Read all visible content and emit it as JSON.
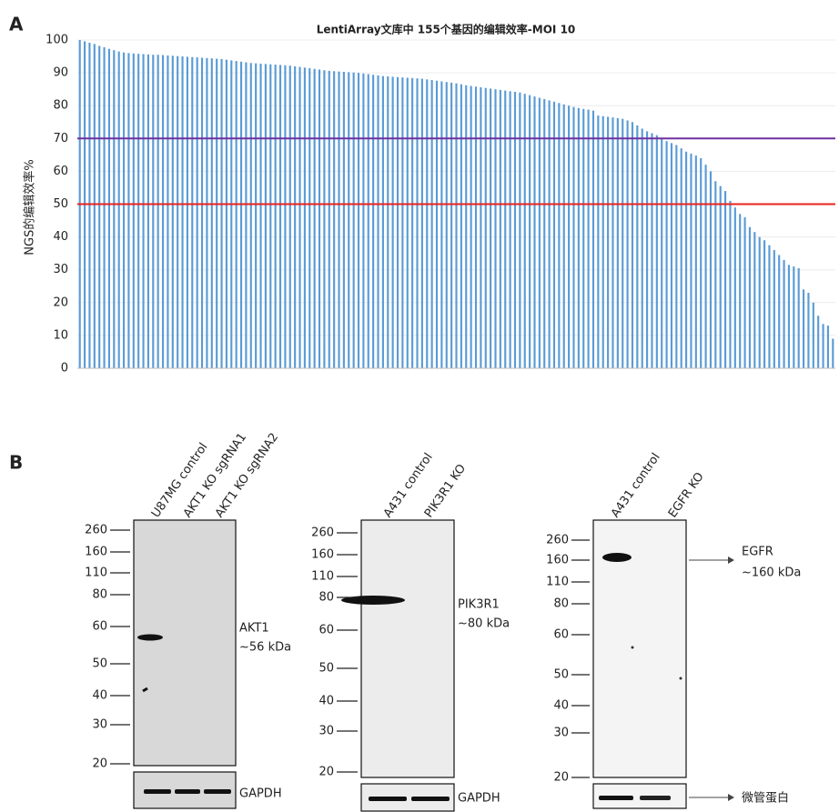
{
  "panel_labels": [
    "A",
    "B"
  ],
  "chart_data": {
    "type": "bar",
    "title": "LentiArray文库中 155个基因的编辑效率-MOI 10",
    "y_label": "NGS的编辑效率%",
    "color": "#5b9bd5",
    "grid": true,
    "ylim": [
      0,
      100
    ],
    "yticks": [
      0,
      10,
      20,
      30,
      40,
      50,
      60,
      70,
      80,
      90,
      100
    ],
    "reference_lines": [
      {
        "value": 70,
        "color": "#7030a0"
      },
      {
        "value": 50,
        "color": "#e8231f"
      }
    ],
    "categories": [
      null,
      null,
      null,
      null,
      null,
      null,
      null,
      null,
      null,
      null,
      null,
      null,
      null,
      null,
      null,
      null,
      null,
      null,
      null,
      null,
      null,
      null,
      null,
      null,
      null,
      null,
      null,
      null,
      null,
      null,
      null,
      null,
      null,
      null,
      null,
      null,
      null,
      null,
      null,
      null,
      null,
      null,
      null,
      null,
      null,
      null,
      null,
      null,
      null,
      null,
      null,
      null,
      null,
      null,
      null,
      null,
      null,
      null,
      null,
      null,
      null,
      null,
      null,
      null,
      null,
      null,
      null,
      null,
      null,
      null,
      null,
      null,
      null,
      null,
      null,
      null,
      null,
      null,
      null,
      null,
      null,
      null,
      null,
      null,
      null,
      null,
      null,
      null,
      null,
      null,
      null,
      null,
      null,
      null,
      null,
      null,
      null,
      null,
      null,
      null,
      null,
      null,
      null,
      null,
      null,
      null,
      null,
      null,
      null,
      null,
      null,
      null,
      null,
      null,
      null,
      null,
      null,
      null,
      null,
      null,
      null,
      null,
      null,
      null,
      null,
      null,
      null,
      null,
      null,
      null,
      null,
      null,
      null,
      null,
      null,
      null,
      null,
      null,
      null,
      null,
      null,
      null,
      null,
      null,
      null,
      null,
      null,
      null,
      null,
      null,
      null,
      null,
      null,
      null,
      null
    ],
    "values": [
      100,
      99.6,
      99.2,
      98.8,
      98.2,
      97.8,
      97.3,
      96.9,
      96.5,
      96.2,
      96.0,
      95.9,
      95.8,
      95.7,
      95.6,
      95.5,
      95.5,
      95.4,
      95.3,
      95.2,
      95.1,
      95.0,
      94.9,
      94.8,
      94.7,
      94.6,
      94.5,
      94.4,
      94.3,
      94.2,
      94.0,
      93.8,
      93.6,
      93.4,
      93.2,
      93.0,
      92.9,
      92.8,
      92.7,
      92.6,
      92.5,
      92.4,
      92.3,
      92.2,
      92.0,
      91.8,
      91.6,
      91.4,
      91.2,
      91.0,
      90.8,
      90.6,
      90.5,
      90.4,
      90.3,
      90.2,
      90.1,
      90.0,
      89.8,
      89.6,
      89.4,
      89.2,
      89.0,
      88.9,
      88.8,
      88.7,
      88.6,
      88.5,
      88.4,
      88.3,
      88.2,
      88.0,
      87.8,
      87.6,
      87.4,
      87.2,
      87.0,
      86.8,
      86.5,
      86.2,
      86.0,
      85.8,
      85.6,
      85.4,
      85.2,
      85.0,
      84.8,
      84.6,
      84.4,
      84.2,
      84.0,
      83.6,
      83.2,
      82.8,
      82.4,
      82.0,
      81.6,
      81.2,
      80.8,
      80.4,
      80.0,
      79.6,
      79.3,
      79.0,
      78.8,
      78.5,
      77.0,
      76.8,
      76.6,
      76.4,
      76.2,
      76.0,
      75.5,
      75.0,
      74.0,
      73.0,
      72.2,
      71.6,
      71.0,
      70.2,
      69.2,
      68.6,
      68.0,
      67.0,
      66.0,
      65.4,
      64.8,
      64.0,
      62.0,
      60.0,
      57.0,
      55.5,
      54.0,
      51.0,
      49.0,
      47.0,
      46.0,
      43.0,
      41.5,
      40.0,
      39.0,
      37.5,
      36.0,
      34.5,
      33.0,
      31.5,
      31.0,
      30.5,
      24.0,
      23.0,
      20.0,
      16.0,
      13.5,
      13.0,
      9.0
    ]
  },
  "blots": [
    {
      "lanes": [
        "U87MG control",
        "AKT1 KO sgRNA1",
        "AKT1 KO sgRNA2"
      ],
      "markers": [
        260,
        160,
        110,
        80,
        60,
        50,
        40,
        30,
        20
      ],
      "target": [
        "AKT1",
        "~56 kDa"
      ],
      "loading_control": "GAPDH"
    },
    {
      "lanes": [
        "A431 control",
        "PIK3R1 KO"
      ],
      "markers": [
        260,
        160,
        110,
        80,
        60,
        50,
        40,
        30,
        20
      ],
      "target": [
        "PIK3R1",
        "~80 kDa"
      ],
      "loading_control": "GAPDH"
    },
    {
      "lanes": [
        "A431 control",
        "EGFR KO"
      ],
      "markers": [
        260,
        160,
        110,
        80,
        60,
        50,
        40,
        30,
        20
      ],
      "target": [
        "EGFR",
        "~160 kDa"
      ],
      "loading_control": "微管蛋白"
    }
  ]
}
